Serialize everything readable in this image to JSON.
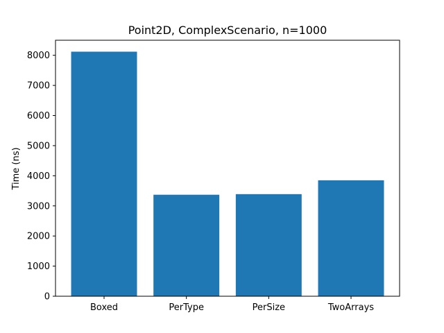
{
  "chart_data": {
    "type": "bar",
    "title": "Point2D, ComplexScenario, n=1000",
    "xlabel": "",
    "ylabel": "Time (ns)",
    "categories": [
      "Boxed",
      "PerType",
      "PerSize",
      "TwoArrays"
    ],
    "values": [
      8120,
      3370,
      3390,
      3850
    ],
    "ylim": [
      0,
      8500
    ],
    "yticks": [
      0,
      1000,
      2000,
      3000,
      4000,
      5000,
      6000,
      7000,
      8000
    ],
    "grid": false,
    "bar_color": "#1f77b4"
  }
}
